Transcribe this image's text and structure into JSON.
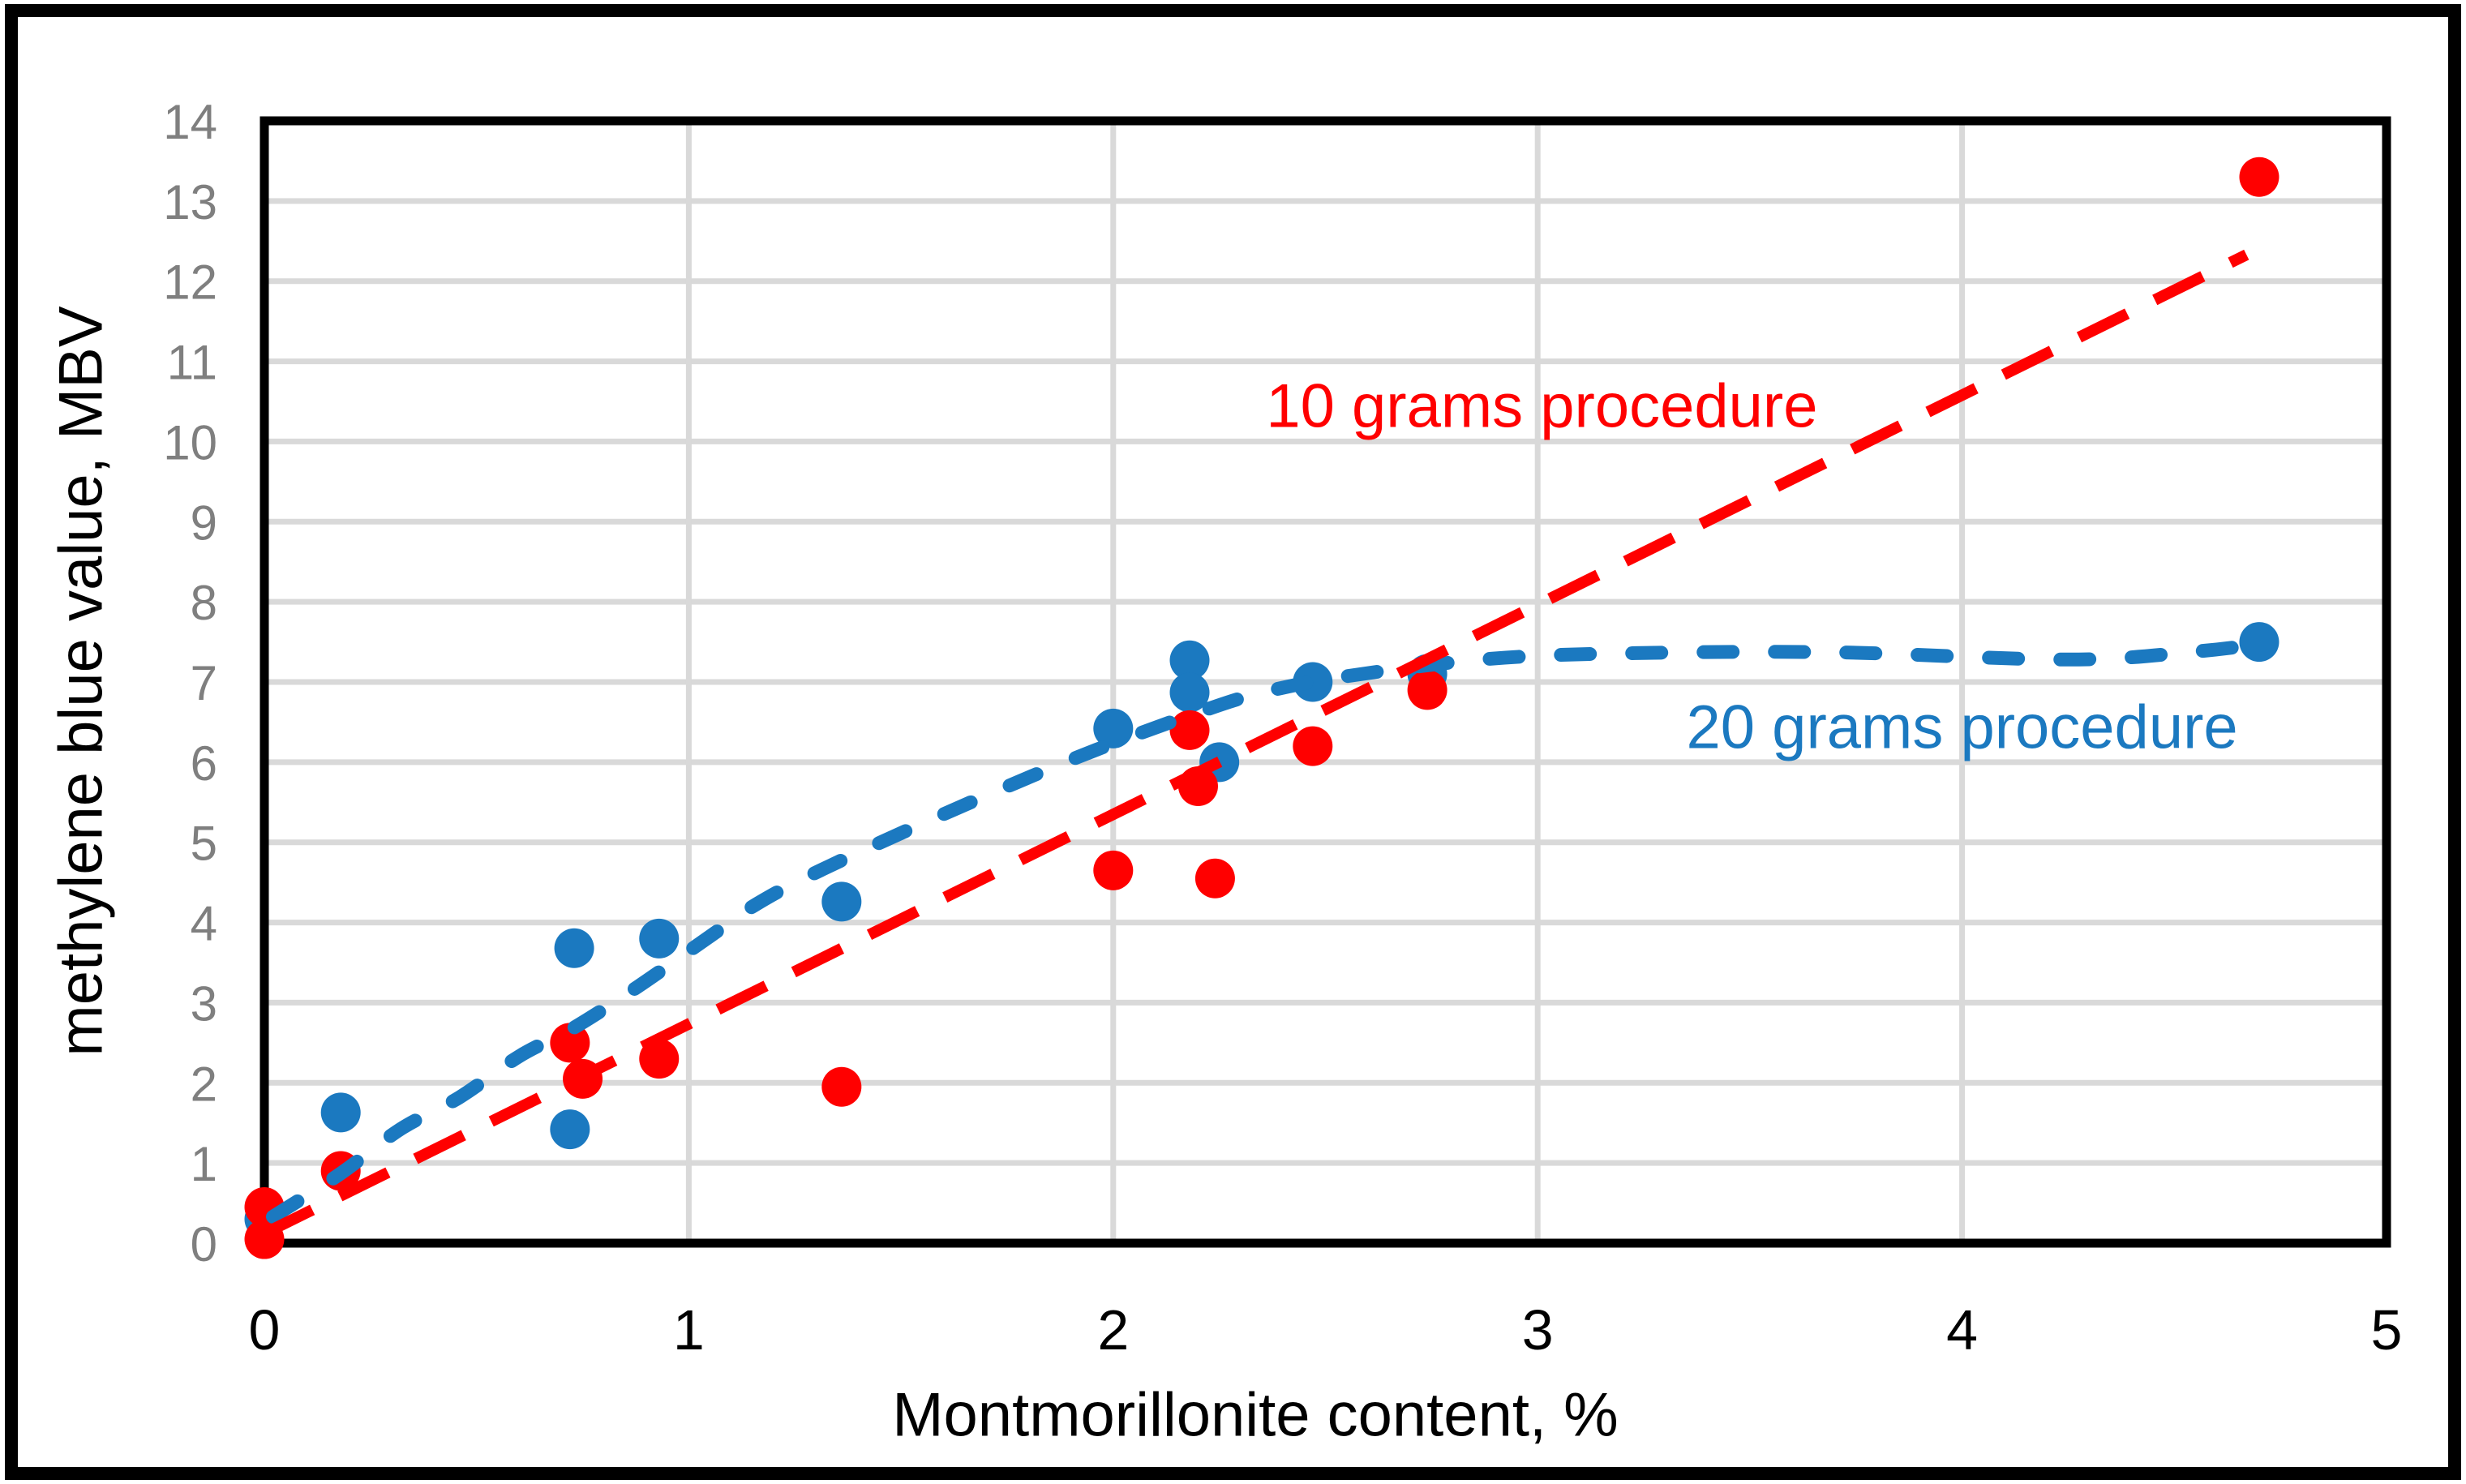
{
  "figure": {
    "background": "#FFFFFF",
    "outer_border_color": "#000000"
  },
  "chart_data": {
    "type": "scatter",
    "title": "",
    "xlabel": "Montmorillonite content, %",
    "ylabel": "methylene blue value, MBV",
    "xlim": [
      0,
      5
    ],
    "ylim": [
      0,
      14
    ],
    "x_ticks": [
      0,
      1,
      2,
      3,
      4,
      5
    ],
    "y_ticks": [
      0,
      1,
      2,
      3,
      4,
      5,
      6,
      7,
      8,
      9,
      10,
      11,
      12,
      13,
      14
    ],
    "grid": true,
    "grid_color": "#D9D9D9",
    "plot_border_color": "#000000",
    "x_tick_label_color": "#000000",
    "y_tick_label_color": "#7F7F7F",
    "legend_position": "inline-annotations",
    "series": [
      {
        "name": "20 grams procedure",
        "color": "#1B79C0",
        "marker": "circle",
        "points": [
          [
            0.0,
            0.3
          ],
          [
            0.18,
            1.63
          ],
          [
            0.72,
            1.42
          ],
          [
            0.73,
            3.68
          ],
          [
            0.93,
            3.8
          ],
          [
            1.36,
            4.26
          ],
          [
            2.0,
            6.42
          ],
          [
            2.18,
            7.27
          ],
          [
            2.18,
            6.87
          ],
          [
            2.25,
            6.0
          ],
          [
            2.47,
            7.0
          ],
          [
            2.74,
            7.1
          ],
          [
            4.7,
            7.5
          ]
        ],
        "trendline": {
          "type": "smooth",
          "dashed": true,
          "points": [
            [
              0.02,
              0.33
            ],
            [
              0.18,
              0.87
            ],
            [
              0.32,
              1.42
            ],
            [
              0.46,
              1.82
            ],
            [
              0.6,
              2.33
            ],
            [
              0.73,
              2.69
            ],
            [
              0.88,
              3.2
            ],
            [
              1.04,
              3.79
            ],
            [
              1.16,
              4.23
            ],
            [
              1.31,
              4.65
            ],
            [
              1.6,
              5.35
            ],
            [
              1.92,
              6.07
            ],
            [
              2.2,
              6.62
            ],
            [
              2.36,
              6.88
            ],
            [
              2.56,
              7.08
            ],
            [
              2.89,
              7.29
            ],
            [
              3.23,
              7.36
            ],
            [
              3.7,
              7.37
            ],
            [
              4.25,
              7.28
            ],
            [
              4.55,
              7.38
            ],
            [
              4.71,
              7.48
            ]
          ]
        }
      },
      {
        "name": "10 grams procedure",
        "color": "#FF0000",
        "marker": "circle",
        "points": [
          [
            0.0,
            0.45
          ],
          [
            0.0,
            0.05
          ],
          [
            0.18,
            0.9
          ],
          [
            0.72,
            2.5
          ],
          [
            0.75,
            2.05
          ],
          [
            0.93,
            2.3
          ],
          [
            1.36,
            1.95
          ],
          [
            2.0,
            4.65
          ],
          [
            2.18,
            6.4
          ],
          [
            2.2,
            5.7
          ],
          [
            2.24,
            4.55
          ],
          [
            2.47,
            6.2
          ],
          [
            2.74,
            6.9
          ],
          [
            4.7,
            13.3
          ]
        ],
        "trendline": {
          "type": "linear",
          "dashed": true,
          "from": [
            0.0,
            0.12
          ],
          "to": [
            4.67,
            12.33
          ]
        }
      }
    ],
    "annotations": [
      {
        "text": "10 grams procedure",
        "color": "#FF0000",
        "x": 3.01,
        "y": 10.44
      },
      {
        "text": "20 grams procedure",
        "color": "#1B79C0",
        "x": 4.0,
        "y": 6.43
      }
    ]
  }
}
